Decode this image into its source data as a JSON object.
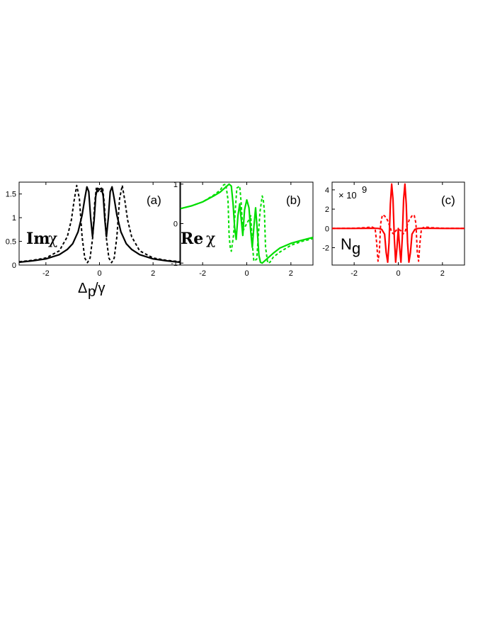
{
  "chart_data": [
    {
      "panel": "(a)",
      "type": "line",
      "ylabel_frak": "Im",
      "ylabel_sym": "χ",
      "xlabel_main": "Δ",
      "xlabel_sub": "p",
      "xlabel_tail": "/γ",
      "xlim": [
        -3,
        3
      ],
      "ylim": [
        0,
        1.75
      ],
      "xticks": [
        -2,
        0,
        2
      ],
      "yticks": [
        0,
        0.5,
        1,
        1.5
      ],
      "ytick_labels": [
        "0",
        "0.5",
        "1",
        "1.5"
      ],
      "color": "#000000",
      "series": [
        {
          "style": "solid",
          "x": [
            -3,
            -2.5,
            -2,
            -1.5,
            -1.2,
            -1,
            -0.8,
            -0.65,
            -0.55,
            -0.47,
            -0.4,
            -0.33,
            -0.26,
            -0.2,
            -0.14,
            -0.08,
            0,
            0.08,
            0.14,
            0.2,
            0.26,
            0.33,
            0.4,
            0.47,
            0.55,
            0.65,
            0.8,
            1,
            1.2,
            1.5,
            2,
            2.5,
            3
          ],
          "y": [
            0.06,
            0.09,
            0.13,
            0.22,
            0.33,
            0.45,
            0.7,
            1.05,
            1.4,
            1.65,
            1.55,
            1.0,
            0.6,
            0.95,
            1.45,
            1.62,
            1.6,
            1.62,
            1.45,
            0.95,
            0.6,
            1.0,
            1.55,
            1.65,
            1.4,
            1.05,
            0.7,
            0.45,
            0.33,
            0.22,
            0.13,
            0.09,
            0.06
          ]
        },
        {
          "style": "dashed",
          "x": [
            -3,
            -2.5,
            -2,
            -1.5,
            -1.2,
            -1.05,
            -0.95,
            -0.85,
            -0.75,
            -0.65,
            -0.55,
            -0.45,
            -0.35,
            -0.25,
            -0.18,
            -0.12,
            -0.06,
            0,
            0.06,
            0.12,
            0.18,
            0.25,
            0.35,
            0.45,
            0.55,
            0.65,
            0.75,
            0.85,
            0.95,
            1.05,
            1.2,
            1.5,
            2,
            2.5,
            3
          ],
          "y": [
            0.07,
            0.1,
            0.15,
            0.3,
            0.6,
            0.95,
            1.35,
            1.68,
            1.4,
            0.6,
            0.15,
            0.05,
            0.15,
            0.6,
            1.3,
            1.62,
            1.55,
            1.6,
            1.55,
            1.62,
            1.3,
            0.6,
            0.15,
            0.05,
            0.15,
            0.6,
            1.4,
            1.68,
            1.35,
            0.95,
            0.6,
            0.3,
            0.15,
            0.1,
            0.07
          ]
        }
      ]
    },
    {
      "panel": "(b)",
      "type": "line",
      "ylabel_frak": "Re",
      "ylabel_sym": "χ",
      "xlim": [
        -3,
        3
      ],
      "ylim": [
        -1.05,
        1.05
      ],
      "xticks": [
        -2,
        0,
        2
      ],
      "yticks": [
        -1,
        0,
        1
      ],
      "ytick_labels": [
        "-1",
        "0",
        "1"
      ],
      "color": "#00dd00",
      "series": [
        {
          "style": "solid",
          "x": [
            -3,
            -2.5,
            -2,
            -1.5,
            -1.2,
            -1,
            -0.8,
            -0.7,
            -0.62,
            -0.55,
            -0.48,
            -0.4,
            -0.32,
            -0.25,
            -0.18,
            -0.1,
            0,
            0.1,
            0.18,
            0.25,
            0.32,
            0.4,
            0.48,
            0.55,
            0.62,
            0.7,
            0.8,
            1,
            1.2,
            1.5,
            2,
            2.5,
            3
          ],
          "y": [
            0.38,
            0.45,
            0.55,
            0.7,
            0.8,
            0.9,
            1.0,
            0.95,
            0.5,
            -0.1,
            -0.4,
            0.2,
            0.5,
            0.1,
            -0.3,
            0.35,
            0.6,
            0.4,
            -0.2,
            -0.6,
            -0.1,
            0.4,
            -0.2,
            -0.8,
            -0.98,
            -1.0,
            -0.95,
            -0.85,
            -0.75,
            -0.62,
            -0.5,
            -0.42,
            -0.35
          ]
        },
        {
          "style": "dashed",
          "x": [
            -3,
            -2.5,
            -2,
            -1.5,
            -1.2,
            -1.05,
            -0.95,
            -0.85,
            -0.8,
            -0.75,
            -0.7,
            -0.6,
            -0.45,
            -0.32,
            -0.25,
            -0.18,
            -0.1,
            0,
            0.1,
            0.18,
            0.25,
            0.32,
            0.45,
            0.6,
            0.7,
            0.75,
            0.8,
            0.85,
            0.95,
            1.05,
            1.2,
            1.5,
            2,
            2.5,
            3
          ],
          "y": [
            0.38,
            0.45,
            0.55,
            0.72,
            0.85,
            0.98,
            1.0,
            0.6,
            -0.3,
            -0.6,
            -0.7,
            -0.3,
            0.9,
            0.95,
            0.5,
            -0.2,
            -0.1,
            0,
            0.1,
            0.2,
            -0.5,
            -0.95,
            -0.9,
            0.3,
            0.7,
            0.6,
            0.3,
            -0.6,
            -1.0,
            -0.98,
            -0.85,
            -0.72,
            -0.55,
            -0.45,
            -0.38
          ]
        }
      ]
    },
    {
      "panel": "(c)",
      "type": "line",
      "ylabel": "N",
      "ylabel_sub": "g",
      "multiplier_base": "× 10",
      "multiplier_exp": "9",
      "xlim": [
        -3,
        3
      ],
      "ylim": [
        -3.8,
        4.8
      ],
      "xticks": [
        -2,
        0,
        2
      ],
      "yticks": [
        -2,
        0,
        2,
        4
      ],
      "ytick_labels": [
        "-2",
        "0",
        "2",
        "4"
      ],
      "color": "#ff0000",
      "series": [
        {
          "style": "solid",
          "x": [
            -3,
            -2,
            -1.2,
            -0.9,
            -0.75,
            -0.62,
            -0.55,
            -0.48,
            -0.42,
            -0.36,
            -0.3,
            -0.24,
            -0.18,
            -0.12,
            -0.06,
            0,
            0.06,
            0.12,
            0.18,
            0.24,
            0.3,
            0.36,
            0.42,
            0.48,
            0.55,
            0.62,
            0.75,
            0.9,
            1.2,
            2,
            3
          ],
          "y": [
            0,
            0,
            0.02,
            0,
            -0.1,
            -0.6,
            -2.5,
            -3.5,
            -1.5,
            2.5,
            4.6,
            3.0,
            -1.0,
            -3.5,
            -2.0,
            0,
            -2.0,
            -3.5,
            -1.0,
            3.0,
            4.6,
            2.5,
            -1.5,
            -3.5,
            -2.5,
            -0.6,
            -0.1,
            0,
            0.02,
            0,
            0
          ]
        },
        {
          "style": "dashed",
          "x": [
            -3,
            -2,
            -1.5,
            -1.2,
            -1.05,
            -0.98,
            -0.92,
            -0.86,
            -0.8,
            -0.72,
            -0.62,
            -0.5,
            -0.38,
            -0.3,
            -0.2,
            -0.1,
            0,
            0.1,
            0.2,
            0.3,
            0.38,
            0.5,
            0.62,
            0.72,
            0.8,
            0.86,
            0.92,
            0.98,
            1.05,
            1.2,
            1.5,
            2,
            3
          ],
          "y": [
            0,
            0.02,
            0.08,
            0.15,
            0,
            -1.5,
            -3.4,
            -2.5,
            0.5,
            1.4,
            1.3,
            0.9,
            0.2,
            -0.4,
            -0.6,
            -0.2,
            -0.1,
            -0.2,
            -0.6,
            -0.4,
            0.2,
            0.9,
            1.3,
            1.4,
            0.5,
            -2.5,
            -3.4,
            -1.5,
            0,
            0.15,
            0.08,
            0.02,
            0
          ]
        }
      ]
    }
  ]
}
